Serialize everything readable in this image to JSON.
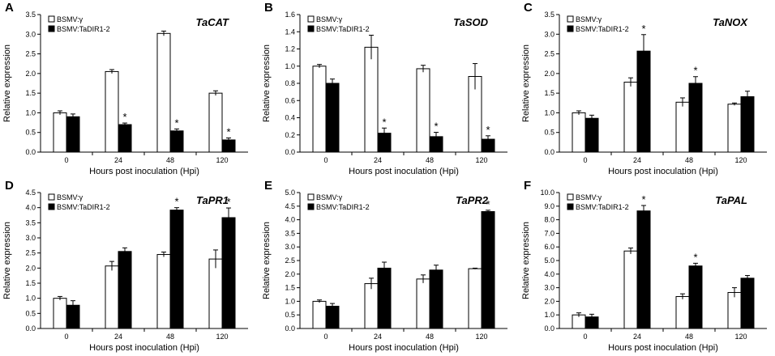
{
  "chart_data": [
    {
      "type": "bar",
      "panel": "A",
      "title": "TaCAT",
      "xlabel": "Hours post inoculation (Hpi)",
      "ylabel": "Relative expression",
      "categories": [
        "0",
        "24",
        "48",
        "120"
      ],
      "ylim": [
        0,
        3.5
      ],
      "yticks": [
        "0.0",
        "0.5",
        "1.0",
        "1.5",
        "2.0",
        "2.5",
        "3.0",
        "3.5"
      ],
      "series": [
        {
          "name": "BSMV:γ",
          "color": "#ffffff",
          "values": [
            1.0,
            2.05,
            3.02,
            1.5
          ],
          "errors": [
            0.05,
            0.05,
            0.06,
            0.06
          ]
        },
        {
          "name": "BSMV:TaDIR1-2",
          "color": "#000000",
          "values": [
            0.9,
            0.7,
            0.54,
            0.31
          ],
          "errors": [
            0.07,
            0.04,
            0.05,
            0.05
          ]
        }
      ],
      "annotations": [
        {
          "text": "*",
          "category": "24",
          "series": 1
        },
        {
          "text": "*",
          "category": "48",
          "series": 1
        },
        {
          "text": "*",
          "category": "120",
          "series": 1
        }
      ]
    },
    {
      "type": "bar",
      "panel": "B",
      "title": "TaSOD",
      "xlabel": "Hours post inoculation (Hpi)",
      "ylabel": "Relative expression",
      "categories": [
        "0",
        "24",
        "48",
        "120"
      ],
      "ylim": [
        0,
        1.6
      ],
      "yticks": [
        "0.0",
        "0.2",
        "0.4",
        "0.6",
        "0.8",
        "1.0",
        "1.2",
        "1.4",
        "1.6"
      ],
      "series": [
        {
          "name": "BSMV:γ",
          "color": "#ffffff",
          "values": [
            1.0,
            1.22,
            0.97,
            0.88
          ],
          "errors": [
            0.02,
            0.14,
            0.04,
            0.15
          ]
        },
        {
          "name": "BSMV:TaDIR1-2",
          "color": "#000000",
          "values": [
            0.8,
            0.22,
            0.18,
            0.15
          ],
          "errors": [
            0.05,
            0.06,
            0.05,
            0.04
          ]
        }
      ],
      "annotations": [
        {
          "text": "*",
          "category": "24",
          "series": 1
        },
        {
          "text": "*",
          "category": "48",
          "series": 1
        },
        {
          "text": "*",
          "category": "120",
          "series": 1
        }
      ]
    },
    {
      "type": "bar",
      "panel": "C",
      "title": "TaNOX",
      "xlabel": "Hours post inoculation (Hpi)",
      "ylabel": "Relative expression",
      "categories": [
        "0",
        "24",
        "48",
        "120"
      ],
      "ylim": [
        0,
        3.5
      ],
      "yticks": [
        "0.0",
        "0.5",
        "1.0",
        "1.5",
        "2.0",
        "2.5",
        "3.0",
        "3.5"
      ],
      "series": [
        {
          "name": "BSMV:γ",
          "color": "#ffffff",
          "values": [
            1.0,
            1.78,
            1.27,
            1.22
          ],
          "errors": [
            0.05,
            0.11,
            0.11,
            0.03
          ]
        },
        {
          "name": "BSMV:TaDIR1-2",
          "color": "#000000",
          "values": [
            0.86,
            2.57,
            1.75,
            1.41
          ],
          "errors": [
            0.08,
            0.42,
            0.17,
            0.14
          ]
        }
      ],
      "annotations": [
        {
          "text": "*",
          "category": "24",
          "series": 1
        },
        {
          "text": "*",
          "category": "48",
          "series": 1
        }
      ]
    },
    {
      "type": "bar",
      "panel": "D",
      "title": "TaPR1",
      "xlabel": "Hours post inoculation (Hpi)",
      "ylabel": "Relative expression",
      "categories": [
        "0",
        "24",
        "48",
        "120"
      ],
      "ylim": [
        0,
        4.5
      ],
      "yticks": [
        "0.0",
        "0.5",
        "1.0",
        "1.5",
        "2.0",
        "2.5",
        "3.0",
        "3.5",
        "4.0",
        "4.5"
      ],
      "series": [
        {
          "name": "BSMV:γ",
          "color": "#ffffff",
          "values": [
            1.0,
            2.07,
            2.45,
            2.3
          ],
          "errors": [
            0.06,
            0.15,
            0.08,
            0.3
          ]
        },
        {
          "name": "BSMV:TaDIR1-2",
          "color": "#000000",
          "values": [
            0.77,
            2.55,
            3.92,
            3.67
          ],
          "errors": [
            0.15,
            0.12,
            0.08,
            0.32
          ]
        }
      ],
      "annotations": [
        {
          "text": "*",
          "category": "48",
          "series": 1
        },
        {
          "text": "*",
          "category": "120",
          "series": 1
        }
      ]
    },
    {
      "type": "bar",
      "panel": "E",
      "title": "TaPR2",
      "xlabel": "Hours post inoculation (Hpi)",
      "ylabel": "Relative expression",
      "categories": [
        "0",
        "24",
        "48",
        "120"
      ],
      "ylim": [
        0,
        5.0
      ],
      "yticks": [
        "0.0",
        "0.5",
        "1.0",
        "1.5",
        "2.0",
        "2.5",
        "3.0",
        "3.5",
        "4.0",
        "4.5",
        "5.0"
      ],
      "series": [
        {
          "name": "BSMV:γ",
          "color": "#ffffff",
          "values": [
            1.0,
            1.65,
            1.82,
            2.2
          ],
          "errors": [
            0.05,
            0.2,
            0.15,
            0.02
          ]
        },
        {
          "name": "BSMV:TaDIR1-2",
          "color": "#000000",
          "values": [
            0.82,
            2.22,
            2.15,
            4.3
          ],
          "errors": [
            0.1,
            0.22,
            0.18,
            0.05
          ]
        }
      ],
      "annotations": [
        {
          "text": "*",
          "category": "120",
          "series": 1
        }
      ]
    },
    {
      "type": "bar",
      "panel": "F",
      "title": "TaPAL",
      "xlabel": "Hours post inoculation (Hpi)",
      "ylabel": "Relative expression",
      "categories": [
        "0",
        "24",
        "48",
        "120"
      ],
      "ylim": [
        0,
        10.0
      ],
      "yticks": [
        "0.0",
        "1.0",
        "2.0",
        "3.0",
        "4.0",
        "5.0",
        "6.0",
        "7.0",
        "8.0",
        "9.0",
        "10.0"
      ],
      "series": [
        {
          "name": "BSMV:γ",
          "color": "#ffffff",
          "values": [
            1.0,
            5.7,
            2.35,
            2.65
          ],
          "errors": [
            0.15,
            0.22,
            0.2,
            0.35
          ]
        },
        {
          "name": "BSMV:TaDIR1-2",
          "color": "#000000",
          "values": [
            0.85,
            8.65,
            4.6,
            3.7
          ],
          "errors": [
            0.2,
            0.4,
            0.2,
            0.2
          ]
        }
      ],
      "annotations": [
        {
          "text": "*",
          "category": "24",
          "series": 1
        },
        {
          "text": "*",
          "category": "48",
          "series": 1
        }
      ]
    }
  ]
}
